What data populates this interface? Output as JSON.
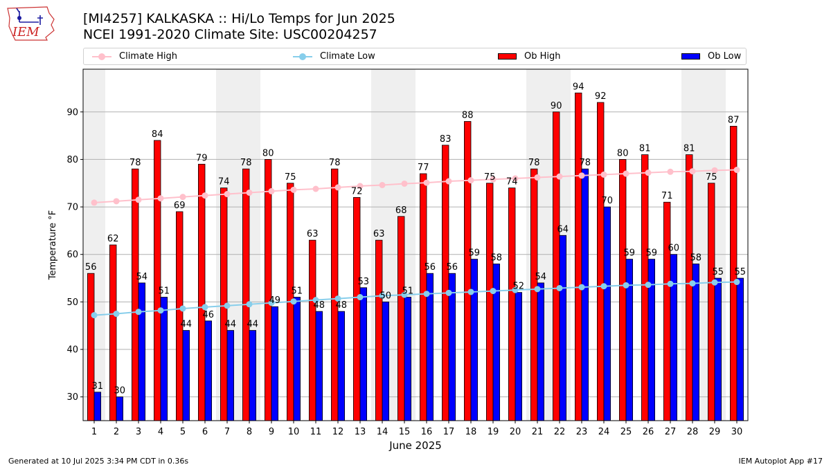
{
  "header": {
    "logo_text": "IEM",
    "title_line1": "[MI4257] KALKASKA :: Hi/Lo Temps for Jun 2025",
    "title_line2": "NCEI 1991-2020 Climate Site: USC00204257"
  },
  "legend": {
    "climate_high": "Climate High",
    "climate_low": "Climate Low",
    "ob_high": "Ob High",
    "ob_low": "Ob Low"
  },
  "footer": {
    "left": "Generated at 10 Jul 2025 3:34 PM CDT in 0.36s",
    "right": "IEM Autoplot App #17"
  },
  "colors": {
    "ob_high": "#ff0000",
    "ob_low": "#0000ff",
    "climate_high": "#ffc0cb",
    "climate_low": "#87ceeb",
    "weekend_band": "#efefef"
  },
  "chart_data": {
    "type": "bar",
    "xlabel": "June 2025",
    "ylabel": "Temperature °F",
    "ylim": [
      25,
      99
    ],
    "yticks": [
      30,
      40,
      50,
      60,
      70,
      80,
      90
    ],
    "grid": "horizontal",
    "legend_placement": "top",
    "x": [
      1,
      2,
      3,
      4,
      5,
      6,
      7,
      8,
      9,
      10,
      11,
      12,
      13,
      14,
      15,
      16,
      17,
      18,
      19,
      20,
      21,
      22,
      23,
      24,
      25,
      26,
      27,
      28,
      29,
      30
    ],
    "shaded_days": [
      1,
      7,
      8,
      14,
      15,
      21,
      22,
      28,
      29
    ],
    "series": [
      {
        "name": "Ob High",
        "kind": "bar",
        "values": [
          56,
          62,
          78,
          84,
          69,
          79,
          74,
          78,
          80,
          75,
          63,
          78,
          72,
          63,
          68,
          77,
          83,
          88,
          75,
          74,
          78,
          90,
          94,
          92,
          80,
          81,
          71,
          81,
          75,
          87
        ]
      },
      {
        "name": "Ob Low",
        "kind": "bar",
        "values": [
          31,
          30,
          54,
          51,
          44,
          46,
          44,
          44,
          49,
          51,
          48,
          48,
          53,
          50,
          51,
          56,
          56,
          59,
          58,
          52,
          54,
          64,
          78,
          70,
          59,
          59,
          60,
          58,
          55,
          55
        ]
      },
      {
        "name": "Climate High",
        "kind": "line",
        "values": [
          70.9,
          71.2,
          71.5,
          71.8,
          72.1,
          72.4,
          72.7,
          73.0,
          73.3,
          73.6,
          73.8,
          74.1,
          74.4,
          74.6,
          74.9,
          75.1,
          75.4,
          75.6,
          75.8,
          76.0,
          76.2,
          76.4,
          76.6,
          76.8,
          77.0,
          77.2,
          77.4,
          77.5,
          77.7,
          77.8
        ]
      },
      {
        "name": "Climate Low",
        "kind": "line",
        "values": [
          47.2,
          47.5,
          47.9,
          48.2,
          48.6,
          48.9,
          49.2,
          49.5,
          49.8,
          50.1,
          50.4,
          50.7,
          51.0,
          51.3,
          51.5,
          51.7,
          51.9,
          52.1,
          52.3,
          52.5,
          52.7,
          52.9,
          53.1,
          53.3,
          53.5,
          53.6,
          53.8,
          53.9,
          54.1,
          54.2
        ]
      }
    ]
  }
}
